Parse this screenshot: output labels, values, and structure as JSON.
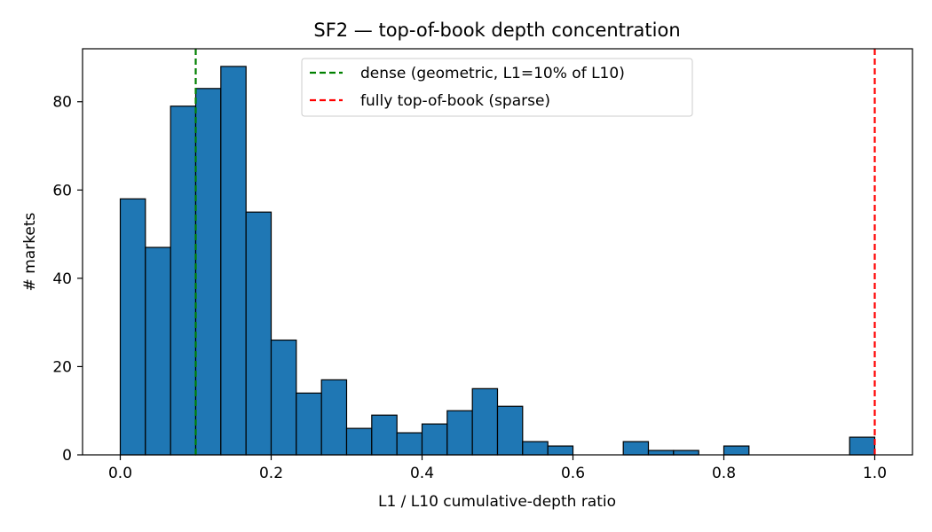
{
  "chart_data": {
    "type": "bar",
    "title": "SF2 — top-of-book depth concentration",
    "xlabel": "L1 / L10 cumulative-depth ratio",
    "ylabel": "# markets",
    "xlim": [
      -0.05,
      1.05
    ],
    "ylim": [
      0,
      92
    ],
    "xticks": [
      0.0,
      0.2,
      0.4,
      0.6,
      0.8,
      1.0
    ],
    "xtick_labels": [
      "0.0",
      "0.2",
      "0.4",
      "0.6",
      "0.8",
      "1.0"
    ],
    "yticks": [
      0,
      20,
      40,
      60,
      80
    ],
    "ytick_labels": [
      "0",
      "20",
      "40",
      "60",
      "80"
    ],
    "grid": false,
    "bin_edges": [
      0.0,
      0.0333,
      0.0667,
      0.1,
      0.1333,
      0.1667,
      0.2,
      0.2333,
      0.2667,
      0.3,
      0.3333,
      0.3667,
      0.4,
      0.4333,
      0.4667,
      0.5,
      0.5333,
      0.5667,
      0.6,
      0.6333,
      0.6667,
      0.7,
      0.7333,
      0.7667,
      0.8,
      0.8333,
      0.8667,
      0.9,
      0.9333,
      0.9667,
      1.0
    ],
    "counts": [
      58,
      47,
      79,
      83,
      88,
      55,
      26,
      14,
      17,
      6,
      9,
      5,
      7,
      10,
      15,
      11,
      3,
      2,
      0,
      0,
      3,
      1,
      1,
      0,
      2,
      0,
      0,
      0,
      0,
      4
    ],
    "bar_color": "#1f77b4",
    "bar_edge_color": "#000000",
    "reference_lines": [
      {
        "x": 0.1,
        "label": "dense (geometric, L1=10% of L10)",
        "color": "#008000",
        "style": "dashed"
      },
      {
        "x": 1.0,
        "label": "fully top-of-book (sparse)",
        "color": "#ff0000",
        "style": "dashed"
      }
    ],
    "legend_position": "top-center"
  }
}
